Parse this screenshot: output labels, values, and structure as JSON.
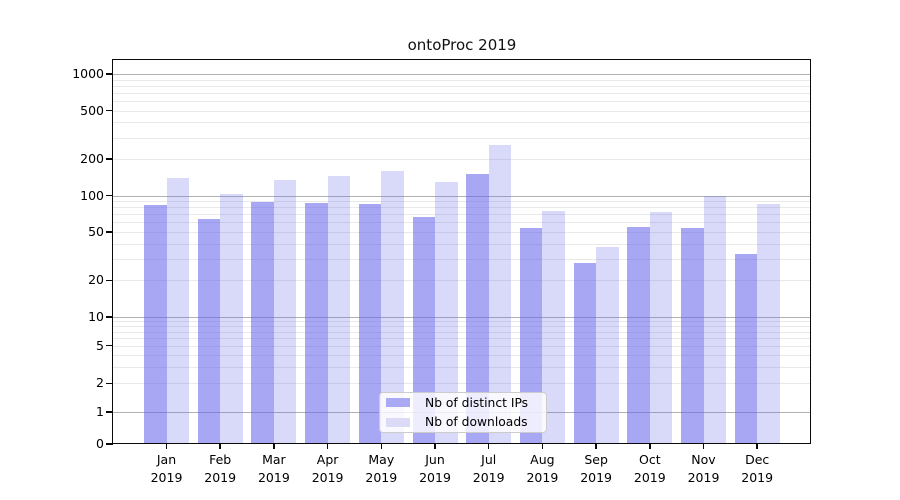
{
  "title": "ontoProc 2019",
  "chart_data": {
    "type": "bar",
    "title": "ontoProc 2019",
    "categories": [
      "Jan",
      "Feb",
      "Mar",
      "Apr",
      "May",
      "Jun",
      "Jul",
      "Aug",
      "Sep",
      "Oct",
      "Nov",
      "Dec"
    ],
    "year_label": "2019",
    "series": [
      {
        "name": "Nb of distinct IPs",
        "color": "#a9a9f4",
        "fill": "rgba(98,98,235,0.56)",
        "values": [
          84,
          64,
          88,
          86,
          85,
          66,
          151,
          54,
          28,
          55,
          54,
          33
        ]
      },
      {
        "name": "Nb of downloads",
        "color": "#dbdbf8",
        "fill": "rgba(98,98,235,0.245)",
        "values": [
          139,
          103,
          134,
          146,
          159,
          128,
          260,
          75,
          38,
          73,
          100,
          85
        ]
      }
    ],
    "xlabel": "",
    "ylabel": "",
    "yscale": "log (linear below 1, includes 0 baseline)",
    "yticks": [
      0,
      1,
      2,
      5,
      10,
      20,
      50,
      100,
      200,
      500,
      1000
    ],
    "ylim": [
      0,
      1300
    ],
    "grid": true,
    "legend_position": "lower center, inside plot"
  },
  "colors": {
    "background": "#ffffff",
    "major_grid": "#b1b1b1",
    "minor_grid": "#e9e9e9",
    "spine": "#0a0a0a",
    "legend_border": "#cccccc",
    "legend_background": "rgba(255,255,255,0.8)"
  }
}
